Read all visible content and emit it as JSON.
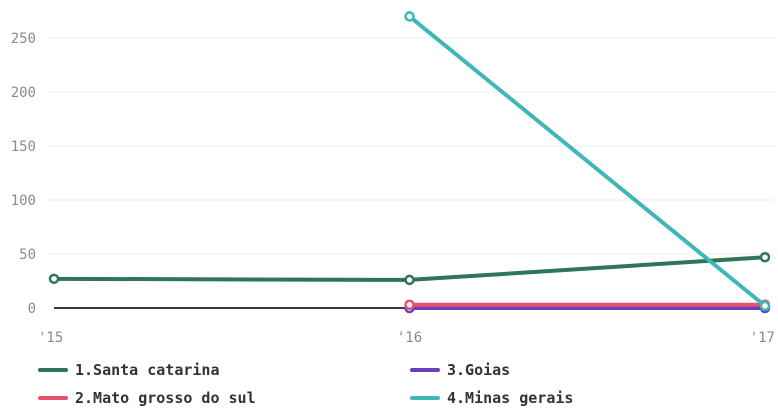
{
  "chart_data": {
    "type": "line",
    "x": [
      "'15",
      "'16",
      "'17"
    ],
    "y_ticks": [
      0,
      50,
      100,
      150,
      200,
      250
    ],
    "ylim": [
      0,
      275
    ],
    "grid": "horizontal",
    "legend_position": "bottom",
    "series": [
      {
        "name": "1.Santa catarina",
        "color": "#2e7559",
        "values": [
          27,
          26,
          47
        ]
      },
      {
        "name": "2.Mato grosso do sul",
        "color": "#e5526a",
        "values": [
          null,
          3,
          3
        ]
      },
      {
        "name": "3.Goias",
        "color": "#6a3fbd",
        "values": [
          null,
          0,
          0
        ]
      },
      {
        "name": "4.Minas gerais",
        "color": "#3fb7b9",
        "values": [
          null,
          270,
          2
        ]
      }
    ]
  }
}
